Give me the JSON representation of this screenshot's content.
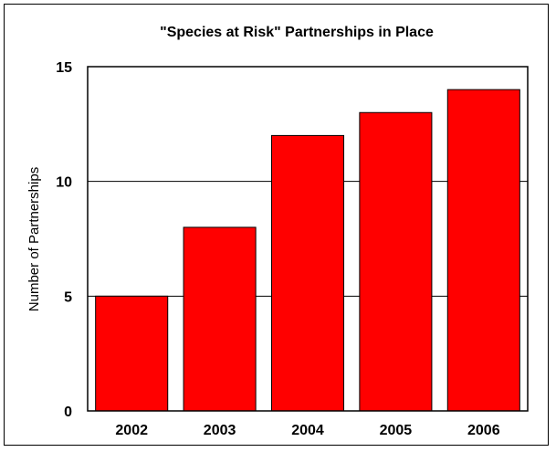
{
  "chart_data": {
    "type": "bar",
    "title": "\"Species at Risk\" Partnerships in Place",
    "xlabel": "",
    "ylabel": "Number of Partnerships",
    "categories": [
      "2002",
      "2003",
      "2004",
      "2005",
      "2006"
    ],
    "values": [
      5,
      8,
      12,
      13,
      14
    ],
    "ylim": [
      0,
      15
    ],
    "yticks": [
      "0",
      "5",
      "10",
      "15"
    ],
    "grid": true,
    "legend": "none",
    "colors": {
      "bar": "#ff0000",
      "bar_edge": "#000000"
    }
  }
}
